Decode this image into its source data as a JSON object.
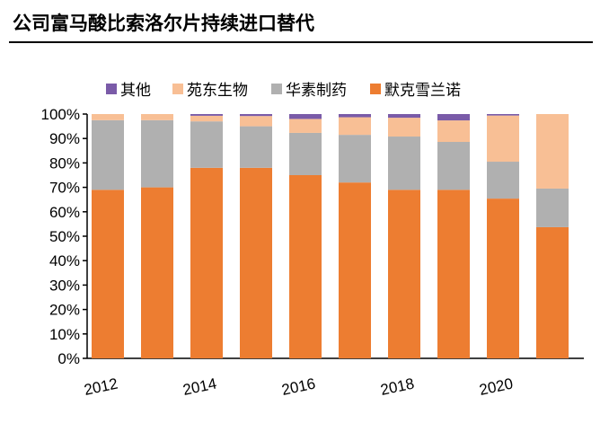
{
  "title": "公司富马酸比索洛尔片持续进口替代",
  "chart_data": {
    "type": "bar",
    "stacked": true,
    "categories": [
      "2012",
      "2013",
      "2014",
      "2015",
      "2016",
      "2017",
      "2018",
      "2019",
      "2020",
      "2021"
    ],
    "tick_labels": [
      "2012",
      "",
      "2014",
      "",
      "2016",
      "",
      "2018",
      "",
      "2020",
      ""
    ],
    "series": [
      {
        "name": "默克雪兰诺",
        "color": "#ED7D31",
        "values": [
          69,
          70,
          78,
          78,
          75,
          72,
          69,
          69,
          65.4,
          53.7
        ]
      },
      {
        "name": "华素制药",
        "color": "#B0B0B0",
        "values": [
          28.5,
          27.5,
          19,
          17,
          17.3,
          19.5,
          21.8,
          19.6,
          15.1,
          15.8
        ]
      },
      {
        "name": "苑东生物",
        "color": "#F8BF95",
        "values": [
          2.5,
          2.5,
          2.3,
          4.2,
          5.7,
          7.2,
          7.7,
          8.8,
          18.9,
          30.5
        ]
      },
      {
        "name": "其他",
        "color": "#7A5BA8",
        "values": [
          0,
          0,
          0.7,
          0.8,
          2,
          1.3,
          1.5,
          2.6,
          0.6,
          0
        ]
      }
    ],
    "legend_order": [
      "其他",
      "苑东生物",
      "华素制药",
      "默克雪兰诺"
    ],
    "legend_position": "top",
    "ylim": [
      0,
      100
    ],
    "yticks": [
      "0%",
      "10%",
      "20%",
      "30%",
      "40%",
      "50%",
      "60%",
      "70%",
      "80%",
      "90%",
      "100%"
    ],
    "grid": false
  }
}
